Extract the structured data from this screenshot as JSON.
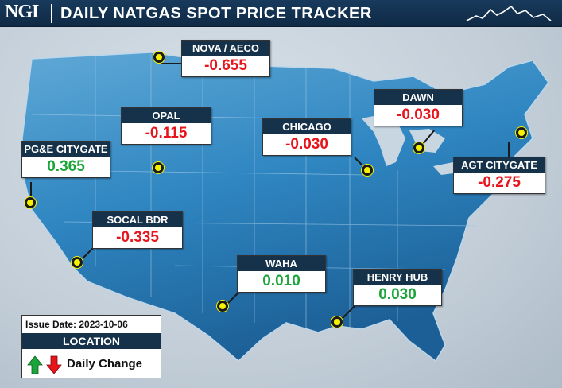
{
  "header": {
    "logo": "NGI",
    "title": "DAILY NATGAS SPOT PRICE TRACKER",
    "sparkline_icon": "sparkline-icon"
  },
  "hubs": [
    {
      "id": "nova-aeco",
      "name": "NOVA / AECO",
      "value": "-0.655",
      "trend": "neg"
    },
    {
      "id": "opal",
      "name": "OPAL",
      "value": "-0.115",
      "trend": "neg"
    },
    {
      "id": "chicago",
      "name": "CHICAGO",
      "value": "-0.030",
      "trend": "neg"
    },
    {
      "id": "dawn",
      "name": "DAWN",
      "value": "-0.030",
      "trend": "neg"
    },
    {
      "id": "pge-citygate",
      "name": "PG&E CITYGATE",
      "value": "0.365",
      "trend": "pos"
    },
    {
      "id": "agt-citygate",
      "name": "AGT CITYGATE",
      "value": "-0.275",
      "trend": "neg"
    },
    {
      "id": "socal-bdr",
      "name": "SOCAL BDR",
      "value": "-0.335",
      "trend": "neg"
    },
    {
      "id": "waha",
      "name": "WAHA",
      "value": "0.010",
      "trend": "pos"
    },
    {
      "id": "henry-hub",
      "name": "HENRY HUB",
      "value": "0.030",
      "trend": "pos"
    }
  ],
  "legend": {
    "issue_date": "Issue Date: 2023-10-06",
    "location_label": "LOCATION",
    "daily_change_label": "Daily Change",
    "up_color": "#1ca53a",
    "down_color": "#e8141b"
  },
  "colors": {
    "header_bg": "#16324a",
    "negative": "#e8141b",
    "positive": "#1ca53a",
    "marker": "#f5f200",
    "map_fill": "#2f86c1"
  }
}
